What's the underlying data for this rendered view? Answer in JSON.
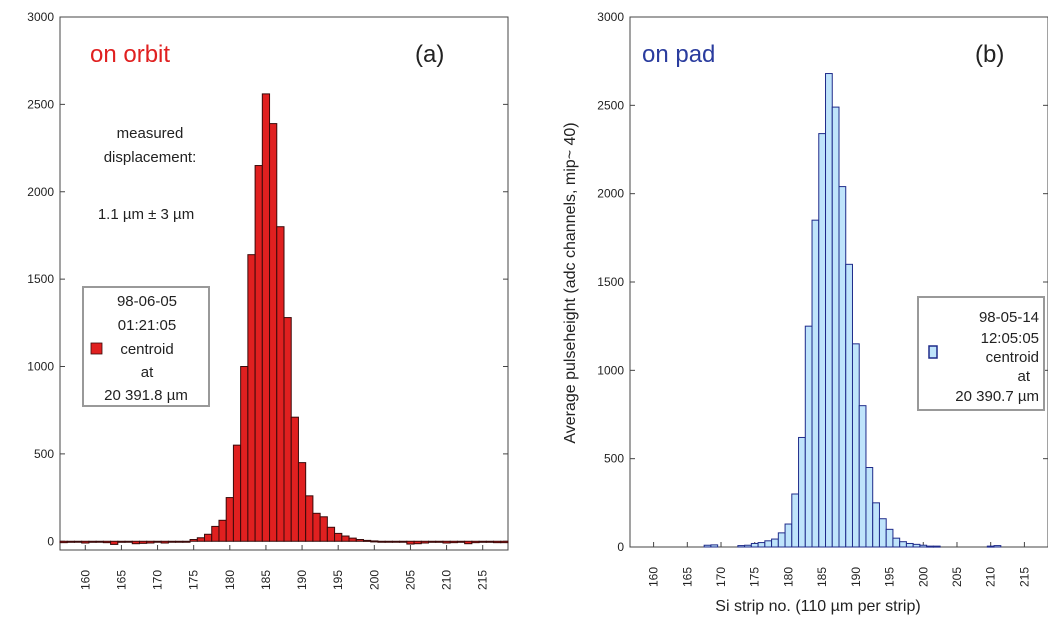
{
  "chart_data": [
    {
      "type": "bar",
      "panel_tag": "(a)",
      "title": "on orbit",
      "title_color": "#e02020",
      "bar_fill": "#e02020",
      "bar_stroke": "#3a0a0a",
      "xlabel": "",
      "ylabel": "",
      "xlim": [
        156.5,
        218.5
      ],
      "ylim": [
        -50,
        3000
      ],
      "yticks": [
        0,
        500,
        1000,
        1500,
        2000,
        2500,
        3000
      ],
      "xticks": [
        160,
        165,
        170,
        175,
        180,
        185,
        190,
        195,
        200,
        205,
        210,
        215
      ],
      "x": [
        157,
        158,
        159,
        160,
        161,
        162,
        163,
        164,
        165,
        166,
        167,
        168,
        169,
        170,
        171,
        172,
        173,
        174,
        175,
        176,
        177,
        178,
        179,
        180,
        181,
        182,
        183,
        184,
        185,
        186,
        187,
        188,
        189,
        190,
        191,
        192,
        193,
        194,
        195,
        196,
        197,
        198,
        199,
        200,
        201,
        202,
        203,
        204,
        205,
        206,
        207,
        208,
        209,
        210,
        211,
        212,
        213,
        214,
        215,
        216,
        217,
        218
      ],
      "values": [
        -8,
        -6,
        -4,
        -10,
        -6,
        -4,
        -8,
        -18,
        -6,
        -4,
        -14,
        -12,
        -10,
        -4,
        -10,
        -4,
        -2,
        -4,
        10,
        20,
        40,
        85,
        120,
        250,
        550,
        1000,
        1640,
        2150,
        2560,
        2390,
        1800,
        1280,
        710,
        450,
        260,
        160,
        140,
        80,
        45,
        30,
        18,
        10,
        5,
        2,
        -2,
        -4,
        -4,
        -4,
        -16,
        -14,
        -10,
        -6,
        -6,
        -10,
        -8,
        -6,
        -14,
        -8,
        -6,
        -6,
        -8,
        -8
      ],
      "annotations": [
        "measured",
        "displacement:",
        "1.1 µm ± 3 µm"
      ],
      "legend": {
        "date": "98-06-05",
        "time": "01:21:05",
        "label": "centroid",
        "at": "at",
        "value": "20 391.8 µm"
      }
    },
    {
      "type": "bar",
      "panel_tag": "(b)",
      "title": "on pad",
      "title_color": "#2a3c9e",
      "bar_fill": "#bfe4fb",
      "bar_stroke": "#1f2b8a",
      "xlabel": "Si strip no. (110 µm per strip)",
      "ylabel": "Average pulseheight (adc channels,  mip~ 40)",
      "xlim": [
        156.5,
        218.5
      ],
      "ylim": [
        0,
        3000
      ],
      "yticks": [
        0,
        500,
        1000,
        1500,
        2000,
        2500,
        3000
      ],
      "xticks": [
        160,
        165,
        170,
        175,
        180,
        185,
        190,
        195,
        200,
        205,
        210,
        215
      ],
      "x": [
        157,
        158,
        159,
        160,
        161,
        162,
        163,
        164,
        165,
        166,
        167,
        168,
        169,
        170,
        171,
        172,
        173,
        174,
        175,
        176,
        177,
        178,
        179,
        180,
        181,
        182,
        183,
        184,
        185,
        186,
        187,
        188,
        189,
        190,
        191,
        192,
        193,
        194,
        195,
        196,
        197,
        198,
        199,
        200,
        201,
        202,
        203,
        204,
        205,
        206,
        207,
        208,
        209,
        210,
        211,
        212,
        213,
        214,
        215,
        216,
        217,
        218
      ],
      "values": [
        0,
        0,
        0,
        0,
        0,
        0,
        0,
        0,
        0,
        0,
        0,
        10,
        12,
        0,
        0,
        0,
        8,
        10,
        20,
        25,
        35,
        45,
        80,
        130,
        300,
        620,
        1250,
        1850,
        2340,
        2680,
        2490,
        2040,
        1600,
        1150,
        800,
        450,
        250,
        160,
        100,
        50,
        30,
        20,
        15,
        10,
        5,
        5,
        0,
        0,
        0,
        0,
        0,
        0,
        0,
        5,
        8,
        0,
        0,
        0,
        0,
        0,
        0,
        0
      ],
      "legend": {
        "date": "98-05-14",
        "time": "12:05:05",
        "label": "centroid",
        "at": "at",
        "value": "20 390.7  µm"
      }
    }
  ]
}
